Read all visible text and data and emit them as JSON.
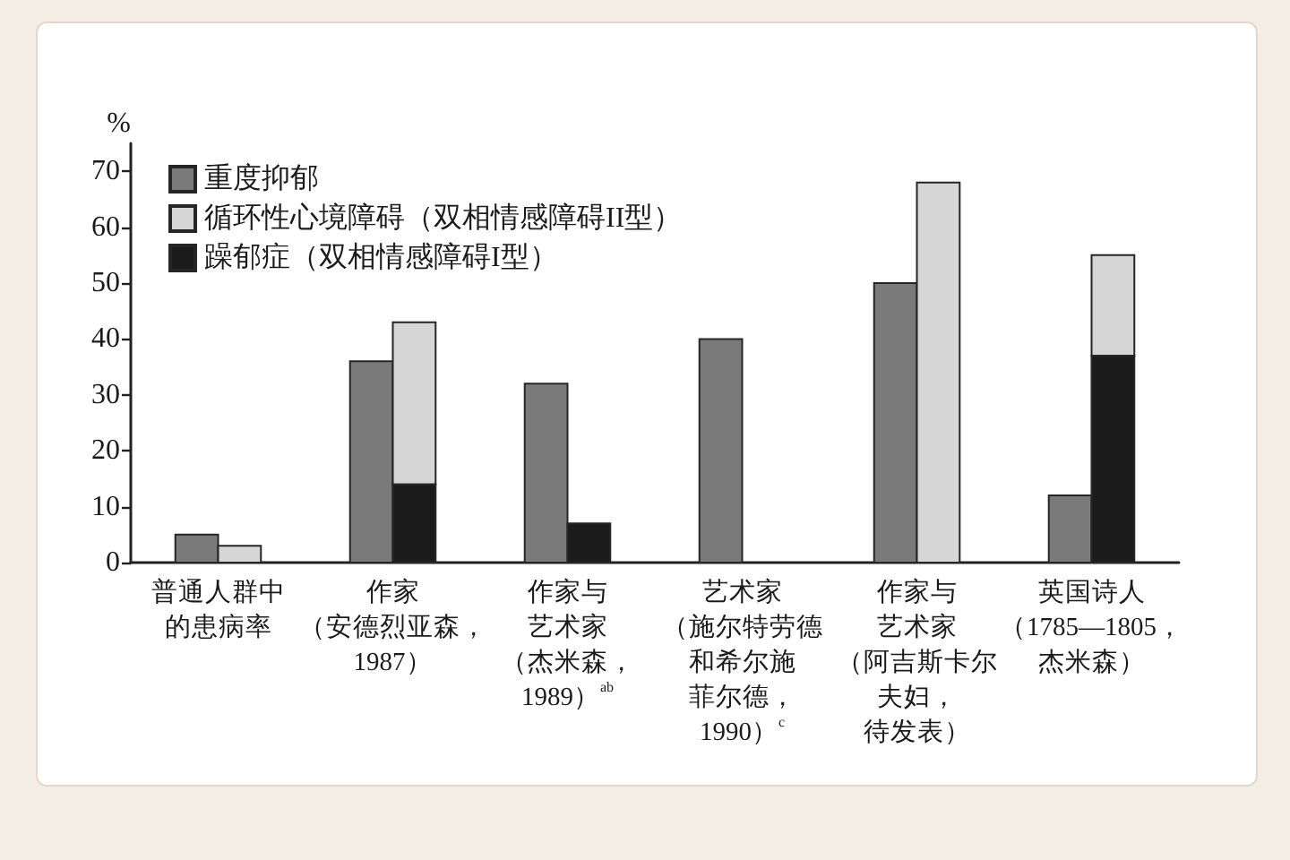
{
  "chart_data": {
    "type": "bar",
    "ylabel": "%",
    "categories": [
      "普通人群中的患病率",
      "作家（安德烈亚森，1987）",
      "作家与艺术家（杰米森，1989）$^{ab}$",
      "艺术家（施尔特劳德和希尔施菲尔德，1990）$^{c}$",
      "作家与艺术家（阿吉斯卡尔夫妇，待发表）",
      "英国诗人（1785—1805，杰米森）"
    ],
    "series": [
      {
        "name": "重度抑郁",
        "color": "#7a7a7a",
        "values": [
          5,
          36,
          32,
          40,
          50,
          12
        ]
      },
      {
        "name": "循环性心境障碍（双相情感障碍II型）",
        "color": "#d6d6d6",
        "values": [
          3,
          29,
          null,
          null,
          68,
          18
        ],
        "base": [
          0,
          14,
          null,
          null,
          0,
          37
        ]
      },
      {
        "name": "躁郁症（双相情感障碍I型）",
        "color": "#1c1c1c",
        "values": [
          null,
          14,
          7,
          null,
          null,
          37
        ]
      }
    ],
    "ylim": [
      0,
      75
    ],
    "yticks": [
      0,
      10,
      20,
      30,
      40,
      50,
      60,
      70
    ],
    "grid": false,
    "legend": "top left"
  }
}
